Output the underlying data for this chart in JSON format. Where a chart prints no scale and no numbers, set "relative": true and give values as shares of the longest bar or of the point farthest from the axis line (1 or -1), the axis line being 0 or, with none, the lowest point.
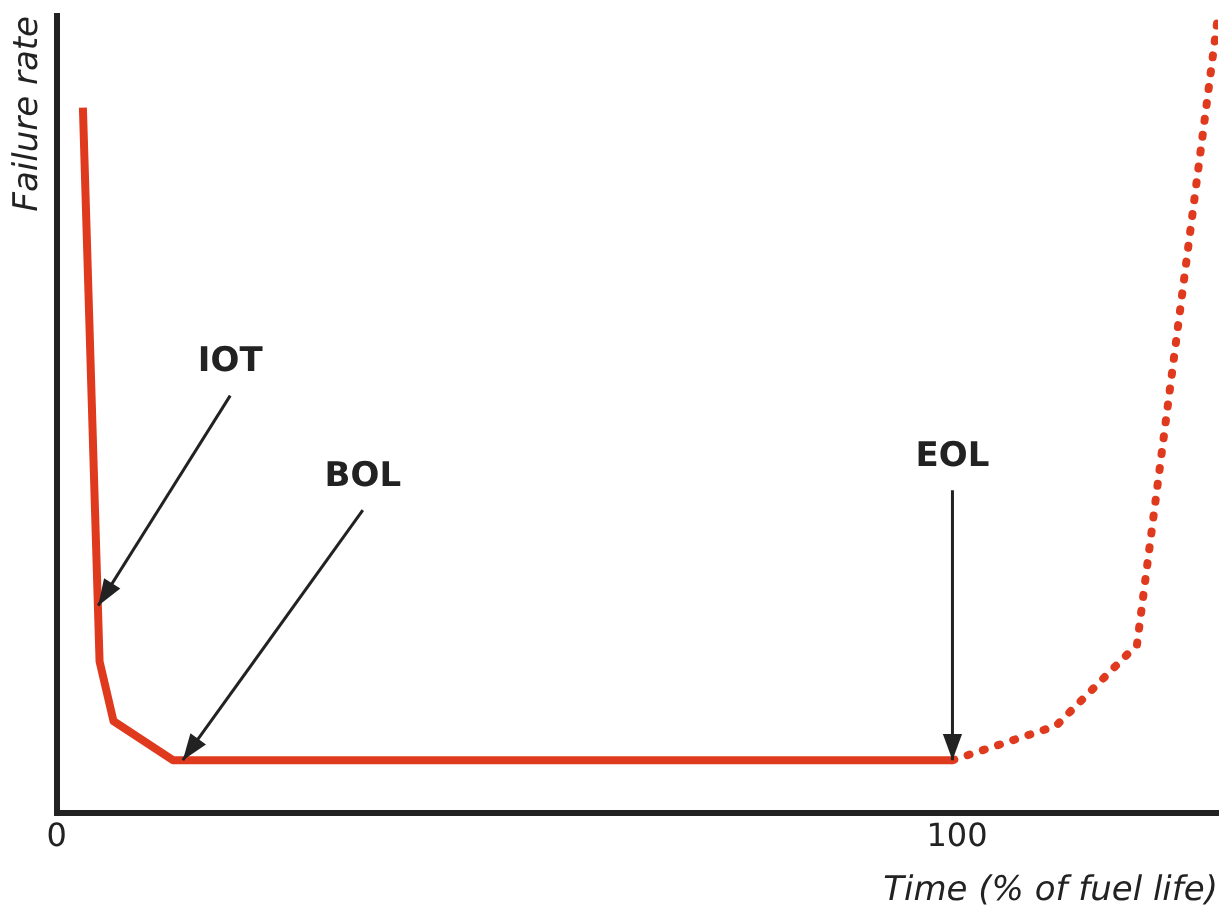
{
  "chart_data": {
    "type": "line",
    "relative": true,
    "xlabel": "Time (% of fuel life)",
    "ylabel": "Failure rate",
    "xlim": [
      0,
      129
    ],
    "xticks": [
      0,
      100
    ],
    "tick_labels": "x",
    "grid": false,
    "legend": false,
    "marker": "none",
    "series": [
      {
        "color": "#e03a1e",
        "line_style": "solid",
        "x": [
          2.9,
          4.75,
          6.3,
          12.9,
          99.5
        ],
        "values": [
          0.885,
          0.19,
          0.115,
          0.066,
          0.066
        ]
      },
      {
        "color": "#e03a1e",
        "line_style": "dotted",
        "x": [
          99.5,
          111,
          120,
          129
        ],
        "values": [
          0.066,
          0.109,
          0.211,
          1
        ]
      }
    ],
    "annotations": [
      {
        "text": "IOT",
        "x": 4.6,
        "y": 0.26
      },
      {
        "text": "BOL",
        "x": 14,
        "y": 0.066
      },
      {
        "text": "EOL",
        "x": 99.5,
        "y": 0.066
      }
    ]
  }
}
